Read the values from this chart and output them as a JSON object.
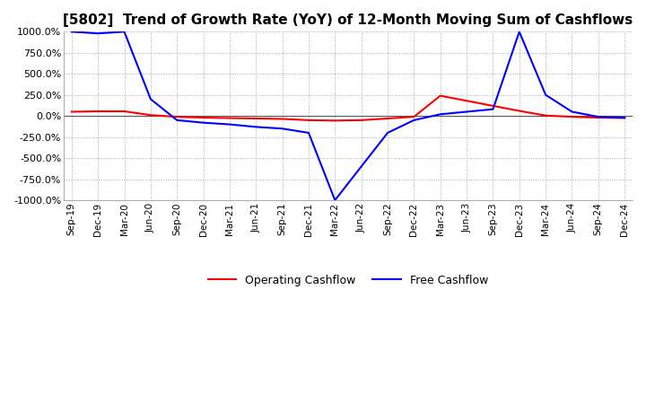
{
  "title": "[5802]  Trend of Growth Rate (YoY) of 12-Month Moving Sum of Cashflows",
  "title_fontsize": 11,
  "ylim": [
    -1000,
    1000
  ],
  "yticks": [
    -1000,
    -750,
    -500,
    -250,
    0,
    250,
    500,
    750,
    1000
  ],
  "ytick_labels": [
    "-1000.0%",
    "-750.0%",
    "-500.0%",
    "-250.0%",
    "0.0%",
    "250.0%",
    "500.0%",
    "750.0%",
    "1000.0%"
  ],
  "x_labels": [
    "Sep-19",
    "Dec-19",
    "Mar-20",
    "Jun-20",
    "Sep-20",
    "Dec-20",
    "Mar-21",
    "Jun-21",
    "Sep-21",
    "Dec-21",
    "Mar-22",
    "Jun-22",
    "Sep-22",
    "Dec-22",
    "Mar-23",
    "Jun-23",
    "Sep-23",
    "Dec-23",
    "Mar-24",
    "Jun-24",
    "Sep-24",
    "Dec-24"
  ],
  "operating_cashflow": [
    50,
    55,
    55,
    10,
    -10,
    -20,
    -25,
    -30,
    -35,
    -50,
    -55,
    -50,
    -30,
    -10,
    240,
    180,
    120,
    60,
    5,
    -10,
    -20,
    -25
  ],
  "free_cashflow": [
    1000,
    980,
    1000,
    200,
    -50,
    -80,
    -100,
    -130,
    -150,
    -200,
    -1000,
    -600,
    -200,
    -50,
    20,
    50,
    80,
    1000,
    250,
    50,
    -10,
    -20
  ],
  "op_color": "#ff0000",
  "fc_color": "#0000ff",
  "grid_color": "#aaaaaa",
  "bg_color": "#ffffff",
  "legend_labels": [
    "Operating Cashflow",
    "Free Cashflow"
  ],
  "line_width": 1.5
}
